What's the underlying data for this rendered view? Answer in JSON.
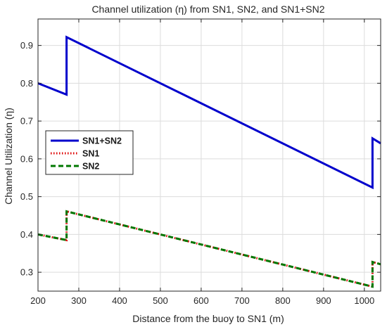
{
  "chart_data": {
    "type": "line",
    "title": "Channel utilization (η) from SN1, SN2, and SN1+SN2",
    "xlabel": "Distance from the buoy to SN1 (m)",
    "ylabel": "Channel Utilization (η)",
    "xlim": [
      200,
      1040
    ],
    "ylim": [
      0.25,
      0.97
    ],
    "xticks": [
      200,
      300,
      400,
      500,
      600,
      700,
      800,
      900,
      1000
    ],
    "yticks": [
      0.3,
      0.4,
      0.5,
      0.6,
      0.7,
      0.8,
      0.9
    ],
    "xtick_labels": [
      "200",
      "300",
      "400",
      "500",
      "600",
      "700",
      "800",
      "900",
      "1000"
    ],
    "ytick_labels": [
      "0.3",
      "0.4",
      "0.5",
      "0.6",
      "0.7",
      "0.8",
      "0.9"
    ],
    "grid": true,
    "legend_position": "left",
    "series": [
      {
        "name": "SN1+SN2",
        "color": "#0000cc",
        "style": "solid",
        "x": [
          200,
          270,
          270,
          1020,
          1020,
          1040
        ],
        "y": [
          0.8,
          0.77,
          0.922,
          0.524,
          0.654,
          0.641
        ]
      },
      {
        "name": "SN1",
        "color": "#dd0000",
        "style": "dotted",
        "x": [
          200,
          270,
          270,
          1020,
          1020,
          1040
        ],
        "y": [
          0.4,
          0.385,
          0.461,
          0.262,
          0.327,
          0.321
        ]
      },
      {
        "name": "SN2",
        "color": "#007700",
        "style": "dashed",
        "x": [
          200,
          270,
          270,
          1020,
          1020,
          1040
        ],
        "y": [
          0.4,
          0.385,
          0.461,
          0.262,
          0.327,
          0.321
        ]
      }
    ]
  }
}
